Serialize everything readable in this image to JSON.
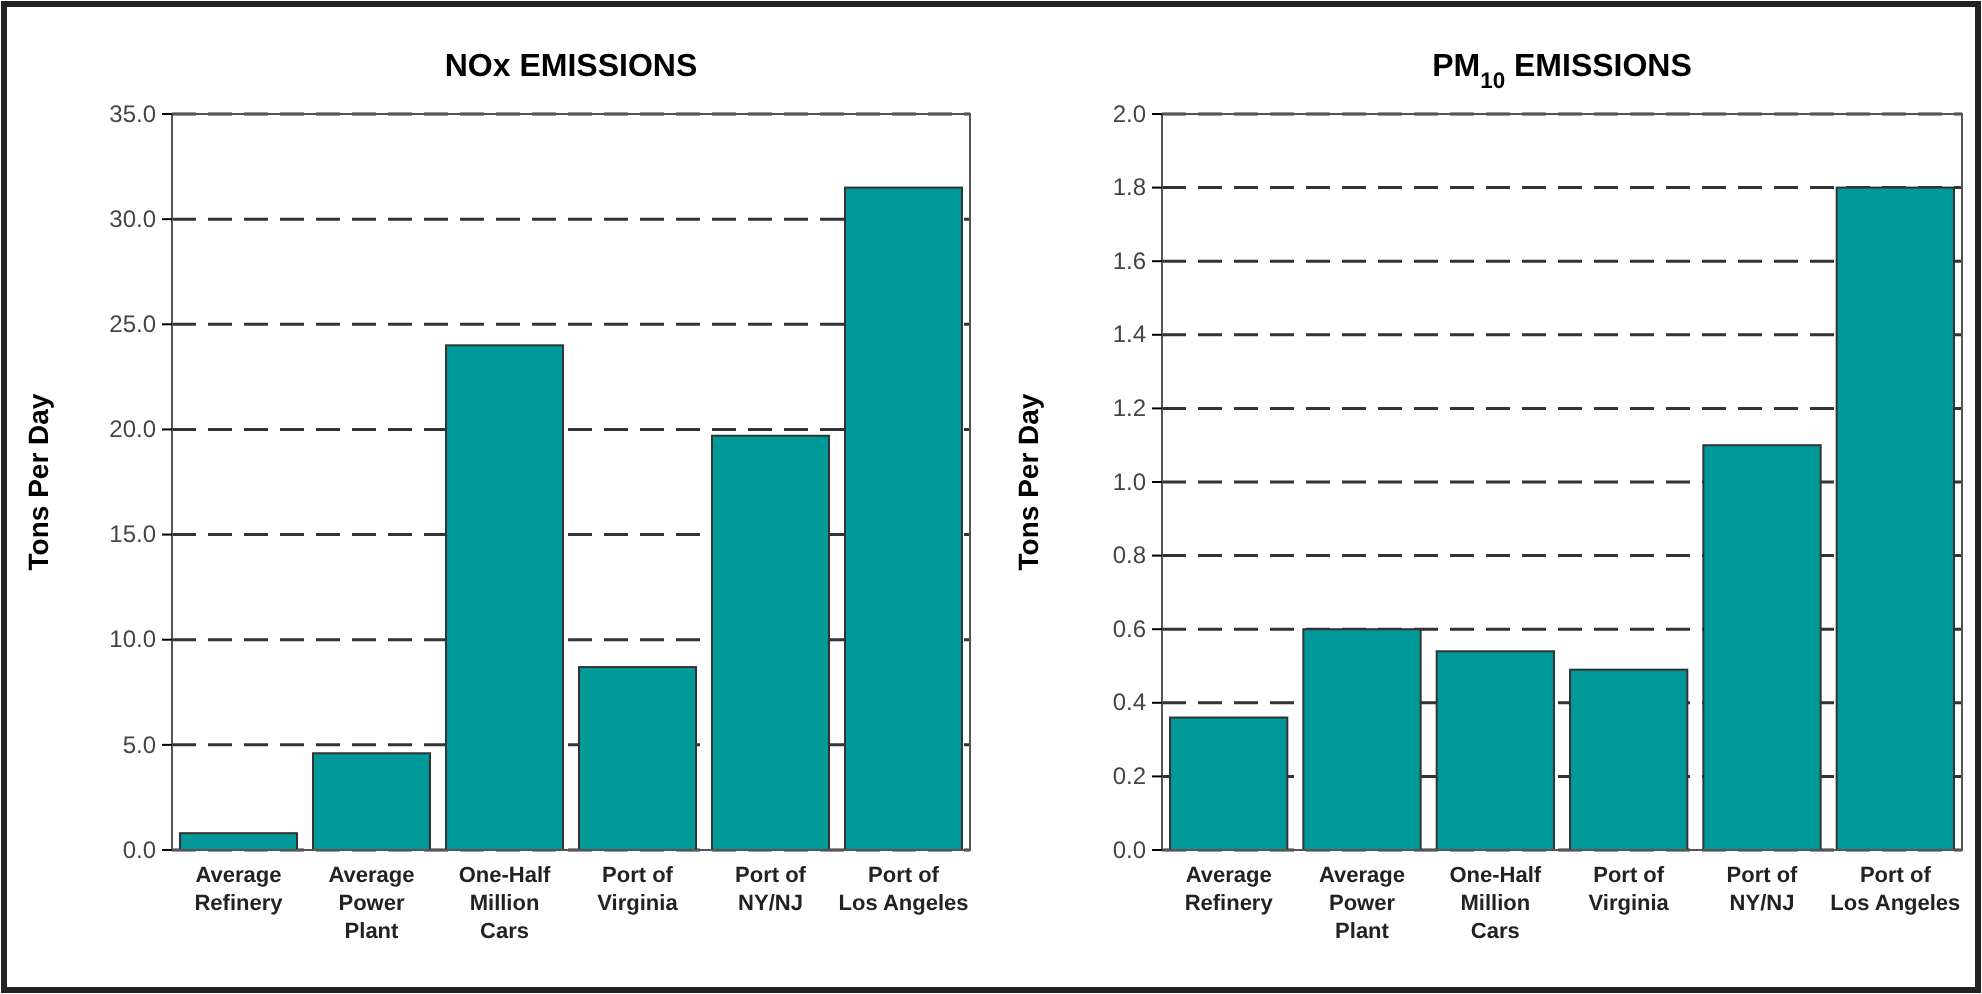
{
  "chart_data": [
    {
      "type": "bar",
      "title": "NOx EMISSIONS",
      "ylabel": "Tons Per Day",
      "categories": [
        "Average\nRefinery",
        "Average\nPower\nPlant",
        "One-Half\nMillion\nCars",
        "Port of\nVirginia",
        "Port of\nNY/NJ",
        "Port of\nLos Angeles"
      ],
      "values": [
        0.8,
        4.6,
        24.0,
        8.7,
        19.7,
        31.5
      ],
      "color": "#009999",
      "ylim": [
        0,
        35
      ],
      "yticks": [
        {
          "value": 0,
          "label": "0.0"
        },
        {
          "value": 5,
          "label": "5.0"
        },
        {
          "value": 10,
          "label": "10.0"
        },
        {
          "value": 15,
          "label": "15.0"
        },
        {
          "value": 20,
          "label": "20.0"
        },
        {
          "value": 25,
          "label": "25.0"
        },
        {
          "value": 30,
          "label": "30.0"
        },
        {
          "value": 35,
          "label": "35.0"
        }
      ],
      "grid": "y",
      "line_style": "dashed"
    },
    {
      "type": "bar",
      "title": "PM$_{10}$ EMISSIONS",
      "ylabel": "Tons Per Day",
      "categories": [
        "Average\nRefinery",
        "Average\nPower\nPlant",
        "One-Half\nMillion\nCars",
        "Port of\nVirginia",
        "Port of\nNY/NJ",
        "Port of\nLos Angeles"
      ],
      "values": [
        0.36,
        0.6,
        0.54,
        0.49,
        1.1,
        1.8
      ],
      "color": "#009999",
      "ylim": [
        0,
        2
      ],
      "yticks": [
        {
          "value": 0,
          "label": "0.0"
        },
        {
          "value": 0.2,
          "label": "0.2"
        },
        {
          "value": 0.4,
          "label": "0.4"
        },
        {
          "value": 0.6,
          "label": "0.6"
        },
        {
          "value": 0.8,
          "label": "0.8"
        },
        {
          "value": 1,
          "label": "1.0"
        },
        {
          "value": 1.2,
          "label": "1.2"
        },
        {
          "value": 1.4,
          "label": "1.4"
        },
        {
          "value": 1.6,
          "label": "1.6"
        },
        {
          "value": 1.8,
          "label": "1.8"
        },
        {
          "value": 2,
          "label": "2.0"
        }
      ],
      "grid": "y",
      "line_style": "dashed"
    }
  ]
}
